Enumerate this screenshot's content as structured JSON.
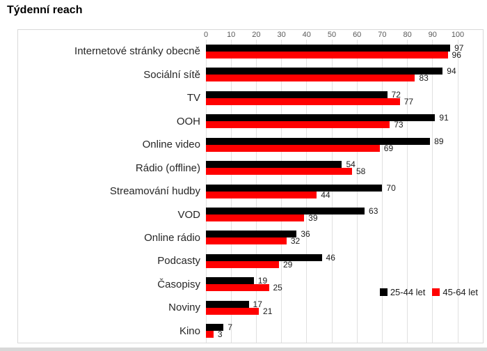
{
  "chart_data": {
    "type": "bar",
    "orientation": "horizontal",
    "title": "Týdenní reach",
    "categories": [
      "Internetové stránky obecně",
      "Sociální sítě",
      "TV",
      "OOH",
      "Online video",
      "Rádio (offline)",
      "Streamování hudby",
      "VOD",
      "Online rádio",
      "Podcasty",
      "Časopisy",
      "Noviny",
      "Kino"
    ],
    "series": [
      {
        "name": "25-44 let",
        "color": "#000000",
        "values": [
          97,
          94,
          72,
          91,
          89,
          54,
          70,
          63,
          36,
          46,
          19,
          17,
          7
        ]
      },
      {
        "name": "45-64 let",
        "color": "#ff0000",
        "values": [
          96,
          83,
          77,
          73,
          69,
          58,
          44,
          39,
          32,
          29,
          25,
          21,
          3
        ]
      }
    ],
    "xlim": [
      0,
      100
    ],
    "ticks": [
      0,
      10,
      20,
      30,
      40,
      50,
      60,
      70,
      80,
      90,
      100
    ],
    "grid": true,
    "data_labels": true,
    "legend_position": "inside-right"
  },
  "colors": {
    "grid": "#e0e0e0",
    "plot_border": "#d9d9d9",
    "tick_label": "#595959",
    "category_label": "#262626",
    "value_label": "#1a1a1a",
    "background": "#ffffff"
  }
}
